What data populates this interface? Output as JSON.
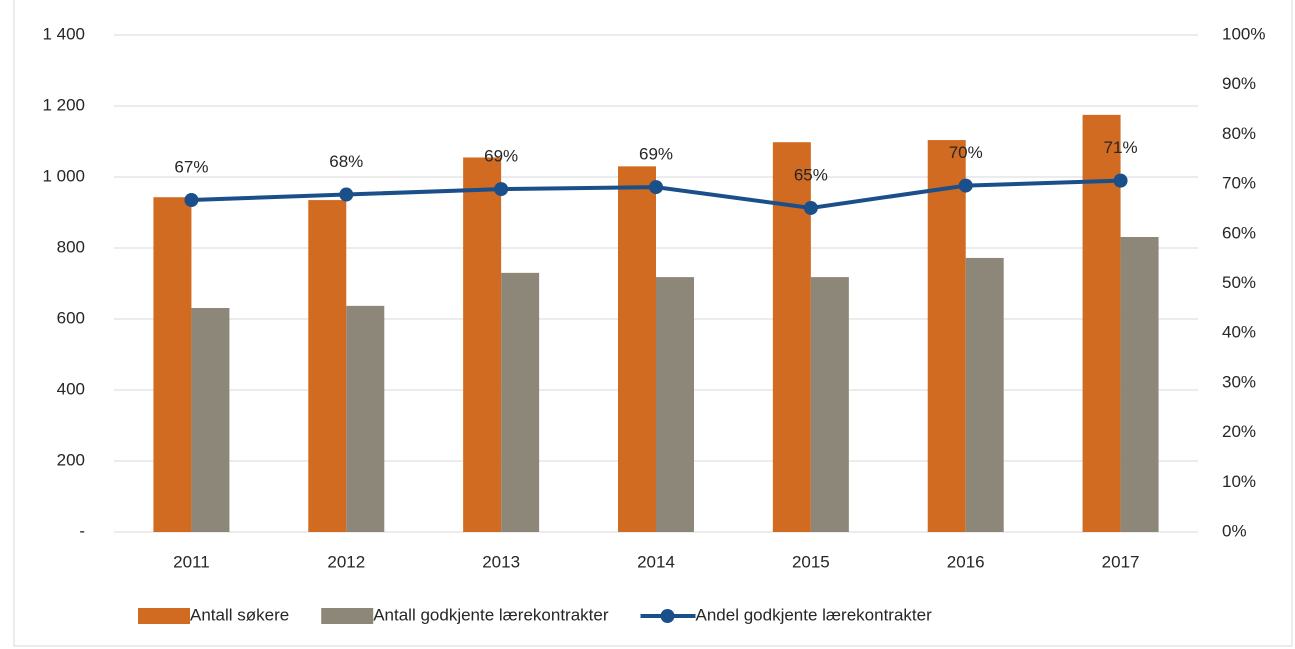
{
  "chart_data": {
    "type": "bar-line",
    "categories": [
      "2011",
      "2012",
      "2013",
      "2014",
      "2015",
      "2016",
      "2017"
    ],
    "series": [
      {
        "name": "Antall søkere",
        "color": "#d06b21",
        "values": [
          943,
          935,
          1055,
          1030,
          1098,
          1104,
          1175
        ]
      },
      {
        "name": "Antall godkjente lærekontrakter",
        "color": "#8c8778",
        "values": [
          631,
          637,
          730,
          718,
          718,
          772,
          831
        ]
      },
      {
        "name": "Andel godkjente lærekontrakter",
        "color": "#1b4f8a",
        "axis": "y2",
        "values": [
          66.8,
          67.9,
          69.0,
          69.4,
          65.2,
          69.7,
          70.7
        ],
        "value_labels": [
          "67%",
          "68%",
          "69%",
          "69%",
          "65%",
          "70%",
          "71%"
        ]
      }
    ],
    "ylim": [
      0,
      1400
    ],
    "yticks": [
      {
        "value": 0,
        "label": "-"
      },
      200,
      400,
      600,
      800,
      {
        "value": 1000,
        "label": "1 000"
      },
      {
        "value": 1200,
        "label": "1 200"
      },
      {
        "value": 1400,
        "label": "1 400"
      }
    ],
    "y2lim": [
      0,
      100
    ],
    "y2ticks": [
      {
        "value": 0,
        "label": "0%"
      },
      {
        "value": 10,
        "label": "10%"
      },
      {
        "value": 20,
        "label": "20%"
      },
      {
        "value": 30,
        "label": "30%"
      },
      {
        "value": 40,
        "label": "40%"
      },
      {
        "value": 50,
        "label": "50%"
      },
      {
        "value": 60,
        "label": "60%"
      },
      {
        "value": 70,
        "label": "70%"
      },
      {
        "value": 80,
        "label": "80%"
      },
      {
        "value": 90,
        "label": "90%"
      },
      {
        "value": 100,
        "label": "100%"
      }
    ],
    "grid": true,
    "legend": "bottom"
  }
}
